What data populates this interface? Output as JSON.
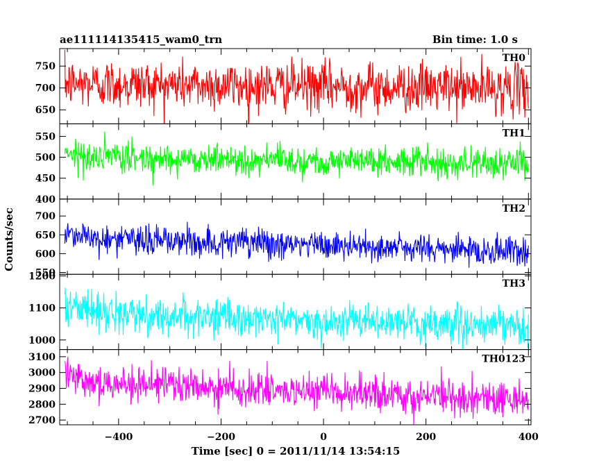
{
  "header": {
    "left_title": "ae111114135415_wam0_trn",
    "right_title": "Bin time: 1.0 s"
  },
  "chart_data": {
    "type": "line",
    "title": "ae111114135415_wam0_trn",
    "subtitle": "Bin time: 1.0 s",
    "xlabel": "Time [sec] 0 = 2011/11/14 13:54:15",
    "ylabel": "Counts/sec",
    "xlim": [
      -515,
      405
    ],
    "x_ticks": [
      -400,
      -200,
      0,
      200,
      400
    ],
    "x_tick_labels": [
      "−400",
      "−200",
      "0",
      "200",
      "400"
    ],
    "bin_time_s": 1.0,
    "grid": false,
    "series_range": [
      -505,
      400
    ],
    "panels": [
      {
        "name": "TH0",
        "color": "#ff0000",
        "ylim": [
          618,
          790
        ],
        "ticks": [
          650,
          700,
          750
        ],
        "tick_labels": [
          "650",
          "700",
          "750"
        ],
        "trend": [
          [
            -505,
            710
          ],
          [
            400,
            698
          ]
        ],
        "noise": 28
      },
      {
        "name": "TH1",
        "color": "#00ff00",
        "ylim": [
          400,
          580
        ],
        "ticks": [
          400,
          450,
          500,
          550
        ],
        "tick_labels": [
          "400",
          "450",
          "500",
          "550"
        ],
        "trend": [
          [
            -505,
            520
          ],
          [
            -470,
            500
          ],
          [
            400,
            485
          ]
        ],
        "noise": 18
      },
      {
        "name": "TH2",
        "color": "#0000ff",
        "ylim": [
          545,
          745
        ],
        "ticks": [
          550,
          600,
          650,
          700
        ],
        "tick_labels": [
          "550",
          "600",
          "650",
          "700"
        ],
        "trend": [
          [
            -505,
            660
          ],
          [
            -450,
            640
          ],
          [
            400,
            605
          ]
        ],
        "noise": 20
      },
      {
        "name": "TH3",
        "color": "#00ffff",
        "ylim": [
          970,
          1205
        ],
        "ticks": [
          1000,
          1100,
          1200
        ],
        "tick_labels": [
          "1000",
          "1100",
          "1200"
        ],
        "trend": [
          [
            -505,
            1110
          ],
          [
            -400,
            1080
          ],
          [
            400,
            1040
          ]
        ],
        "noise": 28
      },
      {
        "name": "TH0123",
        "color": "#ff00ff",
        "ylim": [
          2670,
          3145
        ],
        "ticks": [
          2700,
          2800,
          2900,
          3000,
          3100
        ],
        "tick_labels": [
          "2700",
          "2800",
          "2900",
          "3000",
          "3100"
        ],
        "trend": [
          [
            -505,
            3020
          ],
          [
            -450,
            2940
          ],
          [
            0,
            2870
          ],
          [
            400,
            2830
          ]
        ],
        "noise": 55
      }
    ]
  }
}
